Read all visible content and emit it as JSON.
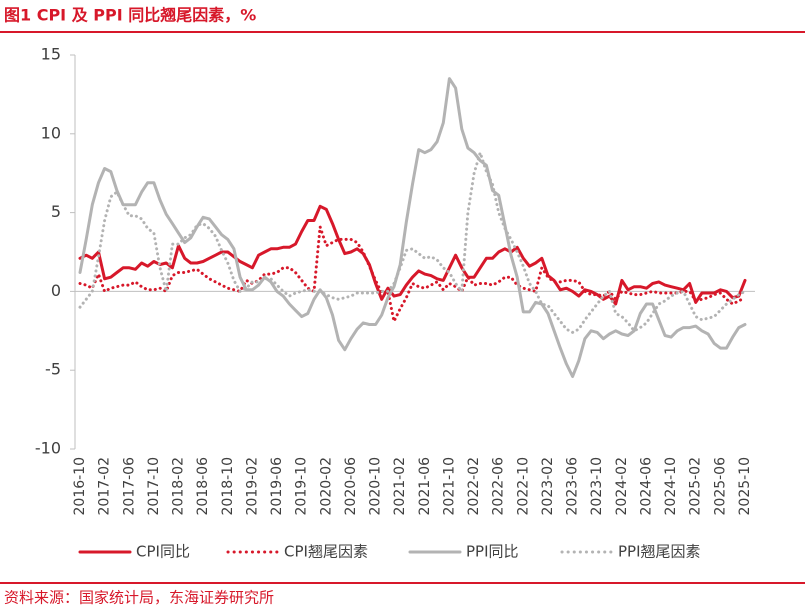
{
  "chart_data": {
    "type": "line",
    "title": "图1  CPI 及 PPI 同比翘尾因素，%",
    "source": "资料来源：国家统计局，东海证券研究所",
    "categories": [
      "2016-10",
      null,
      null,
      null,
      "2017-02",
      null,
      null,
      null,
      "2017-06",
      null,
      null,
      null,
      "2017-10",
      null,
      null,
      null,
      "2018-02",
      null,
      null,
      null,
      "2018-06",
      null,
      null,
      null,
      "2018-10",
      null,
      null,
      null,
      "2019-02",
      null,
      null,
      null,
      "2019-06",
      null,
      null,
      null,
      "2019-10",
      null,
      null,
      null,
      "2020-02",
      null,
      null,
      null,
      "2020-06",
      null,
      null,
      null,
      "2020-10",
      null,
      null,
      null,
      "2021-02",
      null,
      null,
      null,
      "2021-06",
      null,
      null,
      null,
      "2021-10",
      null,
      null,
      null,
      "2022-02",
      null,
      null,
      null,
      "2022-06",
      null,
      null,
      null,
      "2022-10",
      null,
      null,
      null,
      "2023-02",
      null,
      null,
      null,
      "2023-06",
      null,
      null,
      null,
      "2023-10",
      null,
      null,
      null,
      "2024-02",
      null,
      null,
      null,
      "2024-06",
      null,
      null,
      null,
      "2024-10",
      null,
      null,
      null,
      "2025-02",
      null,
      null,
      null,
      "2025-06",
      null,
      null,
      null,
      "2025-10"
    ],
    "series": [
      {
        "name": "CPI同比",
        "color": "#d7182a",
        "style": "solid",
        "values": [
          2.1,
          2.3,
          2.1,
          2.5,
          0.8,
          0.9,
          1.2,
          1.5,
          1.5,
          1.4,
          1.8,
          1.6,
          1.9,
          1.7,
          1.8,
          1.5,
          2.9,
          2.1,
          1.8,
          1.8,
          1.9,
          2.1,
          2.3,
          2.5,
          2.5,
          2.2,
          1.9,
          1.7,
          1.5,
          2.3,
          2.5,
          2.7,
          2.7,
          2.8,
          2.8,
          3.0,
          3.8,
          4.5,
          4.5,
          5.4,
          5.2,
          4.3,
          3.3,
          2.4,
          2.5,
          2.7,
          2.4,
          1.7,
          0.5,
          -0.5,
          0.2,
          -0.3,
          -0.2,
          0.4,
          0.9,
          1.3,
          1.1,
          1.0,
          0.8,
          0.7,
          1.5,
          2.3,
          1.5,
          0.9,
          0.9,
          1.5,
          2.1,
          2.1,
          2.5,
          2.7,
          2.5,
          2.8,
          2.1,
          1.6,
          1.8,
          2.1,
          1.0,
          0.7,
          0.1,
          0.2,
          0.0,
          -0.3,
          0.1,
          0.0,
          -0.2,
          -0.5,
          -0.3,
          -0.8,
          0.7,
          0.1,
          0.3,
          0.3,
          0.2,
          0.5,
          0.6,
          0.4,
          0.3,
          0.2,
          0.1,
          0.5,
          -0.7,
          -0.1,
          -0.1,
          -0.1,
          0.1,
          0.0,
          -0.4,
          -0.3,
          0.7
        ]
      },
      {
        "name": "CPI翘尾因素",
        "color": "#d7182a",
        "style": "dotted",
        "values": [
          0.5,
          0.4,
          0.2,
          1.1,
          0.0,
          0.2,
          0.3,
          0.4,
          0.4,
          0.6,
          0.3,
          0.1,
          0.1,
          0.2,
          0.0,
          1.0,
          1.2,
          1.2,
          1.3,
          1.4,
          1.1,
          0.8,
          0.6,
          0.4,
          0.2,
          0.1,
          0.0,
          0.7,
          0.5,
          0.7,
          1.1,
          1.1,
          1.2,
          1.5,
          1.5,
          1.2,
          0.7,
          0.2,
          0.0,
          4.1,
          2.9,
          3.1,
          3.3,
          3.3,
          3.3,
          3.1,
          2.5,
          1.6,
          0.7,
          -0.1,
          0.0,
          -1.9,
          -1.1,
          -0.4,
          0.5,
          0.3,
          0.2,
          0.4,
          0.6,
          0.1,
          0.5,
          0.3,
          0.0,
          0.9,
          0.4,
          0.5,
          0.5,
          0.4,
          0.6,
          0.9,
          0.9,
          0.4,
          0.2,
          0.1,
          0.0,
          1.5,
          0.9,
          0.6,
          0.6,
          0.7,
          0.7,
          0.6,
          0.0,
          -0.2,
          -0.2,
          -0.3,
          0.0,
          -0.5,
          0.0,
          -0.1,
          -0.2,
          -0.2,
          -0.1,
          0.0,
          -0.1,
          -0.1,
          -0.1,
          -0.1,
          0.0,
          0.0,
          -0.6,
          -0.5,
          -0.4,
          -0.2,
          -0.1,
          -0.5,
          -0.8,
          -0.6,
          -0.4
        ]
      },
      {
        "name": "PPI同比",
        "color": "#b3b3b3",
        "style": "solid",
        "values": [
          1.2,
          3.3,
          5.5,
          6.9,
          7.8,
          7.6,
          6.4,
          5.5,
          5.5,
          5.5,
          6.3,
          6.9,
          6.9,
          5.8,
          4.9,
          4.3,
          3.7,
          3.1,
          3.4,
          4.1,
          4.7,
          4.6,
          4.1,
          3.6,
          3.3,
          2.7,
          0.9,
          0.1,
          0.1,
          0.4,
          0.9,
          0.6,
          0.0,
          -0.3,
          -0.8,
          -1.2,
          -1.6,
          -1.4,
          -0.5,
          0.1,
          -0.4,
          -1.5,
          -3.1,
          -3.7,
          -3.0,
          -2.4,
          -2.0,
          -2.1,
          -2.1,
          -1.5,
          -0.4,
          0.3,
          1.7,
          4.4,
          6.8,
          9.0,
          8.8,
          9.0,
          9.5,
          10.7,
          13.5,
          12.9,
          10.3,
          9.1,
          8.8,
          8.3,
          8.0,
          6.4,
          6.1,
          4.2,
          2.3,
          0.9,
          -1.3,
          -1.3,
          -0.7,
          -0.8,
          -1.4,
          -2.5,
          -3.6,
          -4.6,
          -5.4,
          -4.4,
          -3.0,
          -2.5,
          -2.6,
          -3.0,
          -2.7,
          -2.5,
          -2.7,
          -2.8,
          -2.5,
          -1.4,
          -0.8,
          -0.8,
          -1.8,
          -2.8,
          -2.9,
          -2.5,
          -2.3,
          -2.3,
          -2.2,
          -2.5,
          -2.7,
          -3.3,
          -3.6,
          -3.6,
          -2.9,
          -2.3,
          -2.1
        ]
      },
      {
        "name": "PPI翘尾因素",
        "color": "#b3b3b3",
        "style": "dotted",
        "values": [
          -1.0,
          -0.5,
          0.0,
          2.2,
          4.5,
          6.0,
          6.3,
          5.5,
          4.8,
          4.8,
          4.6,
          4.0,
          3.7,
          1.5,
          0.0,
          3.0,
          3.0,
          3.4,
          3.6,
          4.2,
          4.3,
          4.0,
          3.5,
          2.6,
          1.8,
          0.7,
          0.0,
          0.2,
          0.6,
          0.6,
          0.8,
          0.8,
          0.4,
          0.0,
          -0.3,
          -0.1,
          0.0,
          0.1,
          0.0,
          0.0,
          -0.2,
          -0.4,
          -0.5,
          -0.4,
          -0.3,
          -0.1,
          -0.1,
          -0.1,
          -0.1,
          0.0,
          0.0,
          0.5,
          1.5,
          2.6,
          2.7,
          2.4,
          2.1,
          2.2,
          2.0,
          1.5,
          1.2,
          0.5,
          0.0,
          5.0,
          7.5,
          8.8,
          7.6,
          6.8,
          5.0,
          4.0,
          3.3,
          2.5,
          1.6,
          0.5,
          0.0,
          -0.8,
          -0.9,
          -1.4,
          -1.9,
          -2.4,
          -2.6,
          -2.4,
          -1.8,
          -1.3,
          -0.8,
          -0.3,
          0.0,
          -1.4,
          -1.6,
          -2.0,
          -2.5,
          -2.3,
          -2.0,
          -1.4,
          -0.8,
          -0.6,
          -0.3,
          -0.1,
          0.0,
          -0.8,
          -1.6,
          -1.8,
          -1.7,
          -1.6,
          -1.2,
          -0.8,
          -0.5,
          -0.2,
          0.0
        ]
      }
    ],
    "ylim": [
      -10,
      15
    ],
    "yticks": [
      -10,
      -5,
      0,
      5,
      10,
      15
    ],
    "grid": false,
    "legend": "bottom"
  }
}
